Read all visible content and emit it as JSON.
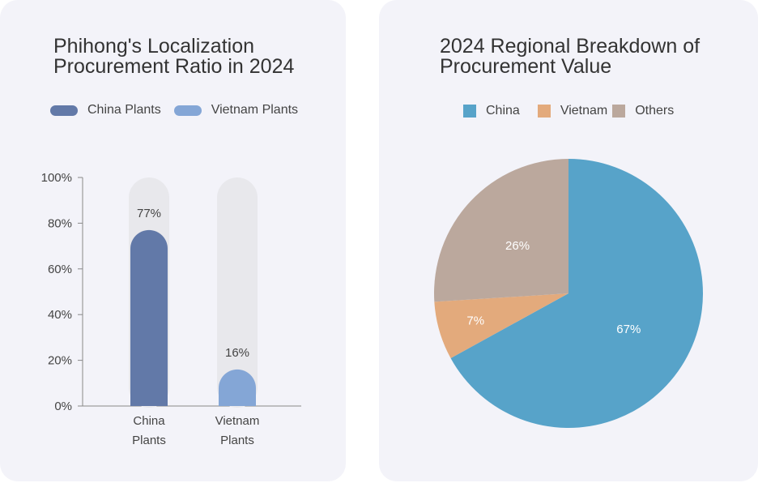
{
  "colors": {
    "china_plants": "#6279a8",
    "vietnam_plants": "#84a6d6",
    "track": "#e8e8ec",
    "axis": "#888888",
    "pie_china": "#57a3c9",
    "pie_vietnam": "#e3aa7c",
    "pie_others": "#bba89d"
  },
  "chart_data": [
    {
      "type": "bar",
      "title": "Phihong's Localization\nProcurement Ratio in 2024",
      "categories": [
        "China\nPlants",
        "Vietnam\nPlants"
      ],
      "series": [
        {
          "name": "China Plants",
          "values": [
            77,
            null
          ]
        },
        {
          "name": "Vietnam Plants",
          "values": [
            null,
            16
          ]
        }
      ],
      "values": [
        77,
        16
      ],
      "data_labels": [
        "77%",
        "16%"
      ],
      "ylim": [
        0,
        100
      ],
      "yticks": [
        0,
        20,
        40,
        60,
        80,
        100
      ],
      "ytick_labels": [
        "0%",
        "20%",
        "40%",
        "60%",
        "80%",
        "100%"
      ],
      "xlabel": "",
      "ylabel": "",
      "legend": [
        "China Plants",
        "Vietnam Plants"
      ],
      "legend_position": "top",
      "grid": false
    },
    {
      "type": "pie",
      "title": "2024 Regional Breakdown of\nProcurement Value",
      "labels": [
        "China",
        "Vietnam",
        "Others"
      ],
      "values": [
        67,
        7,
        26
      ],
      "data_labels": [
        "67%",
        "7%",
        "26%"
      ],
      "legend": [
        "China",
        "Vietnam",
        "Others"
      ],
      "legend_position": "top"
    }
  ]
}
